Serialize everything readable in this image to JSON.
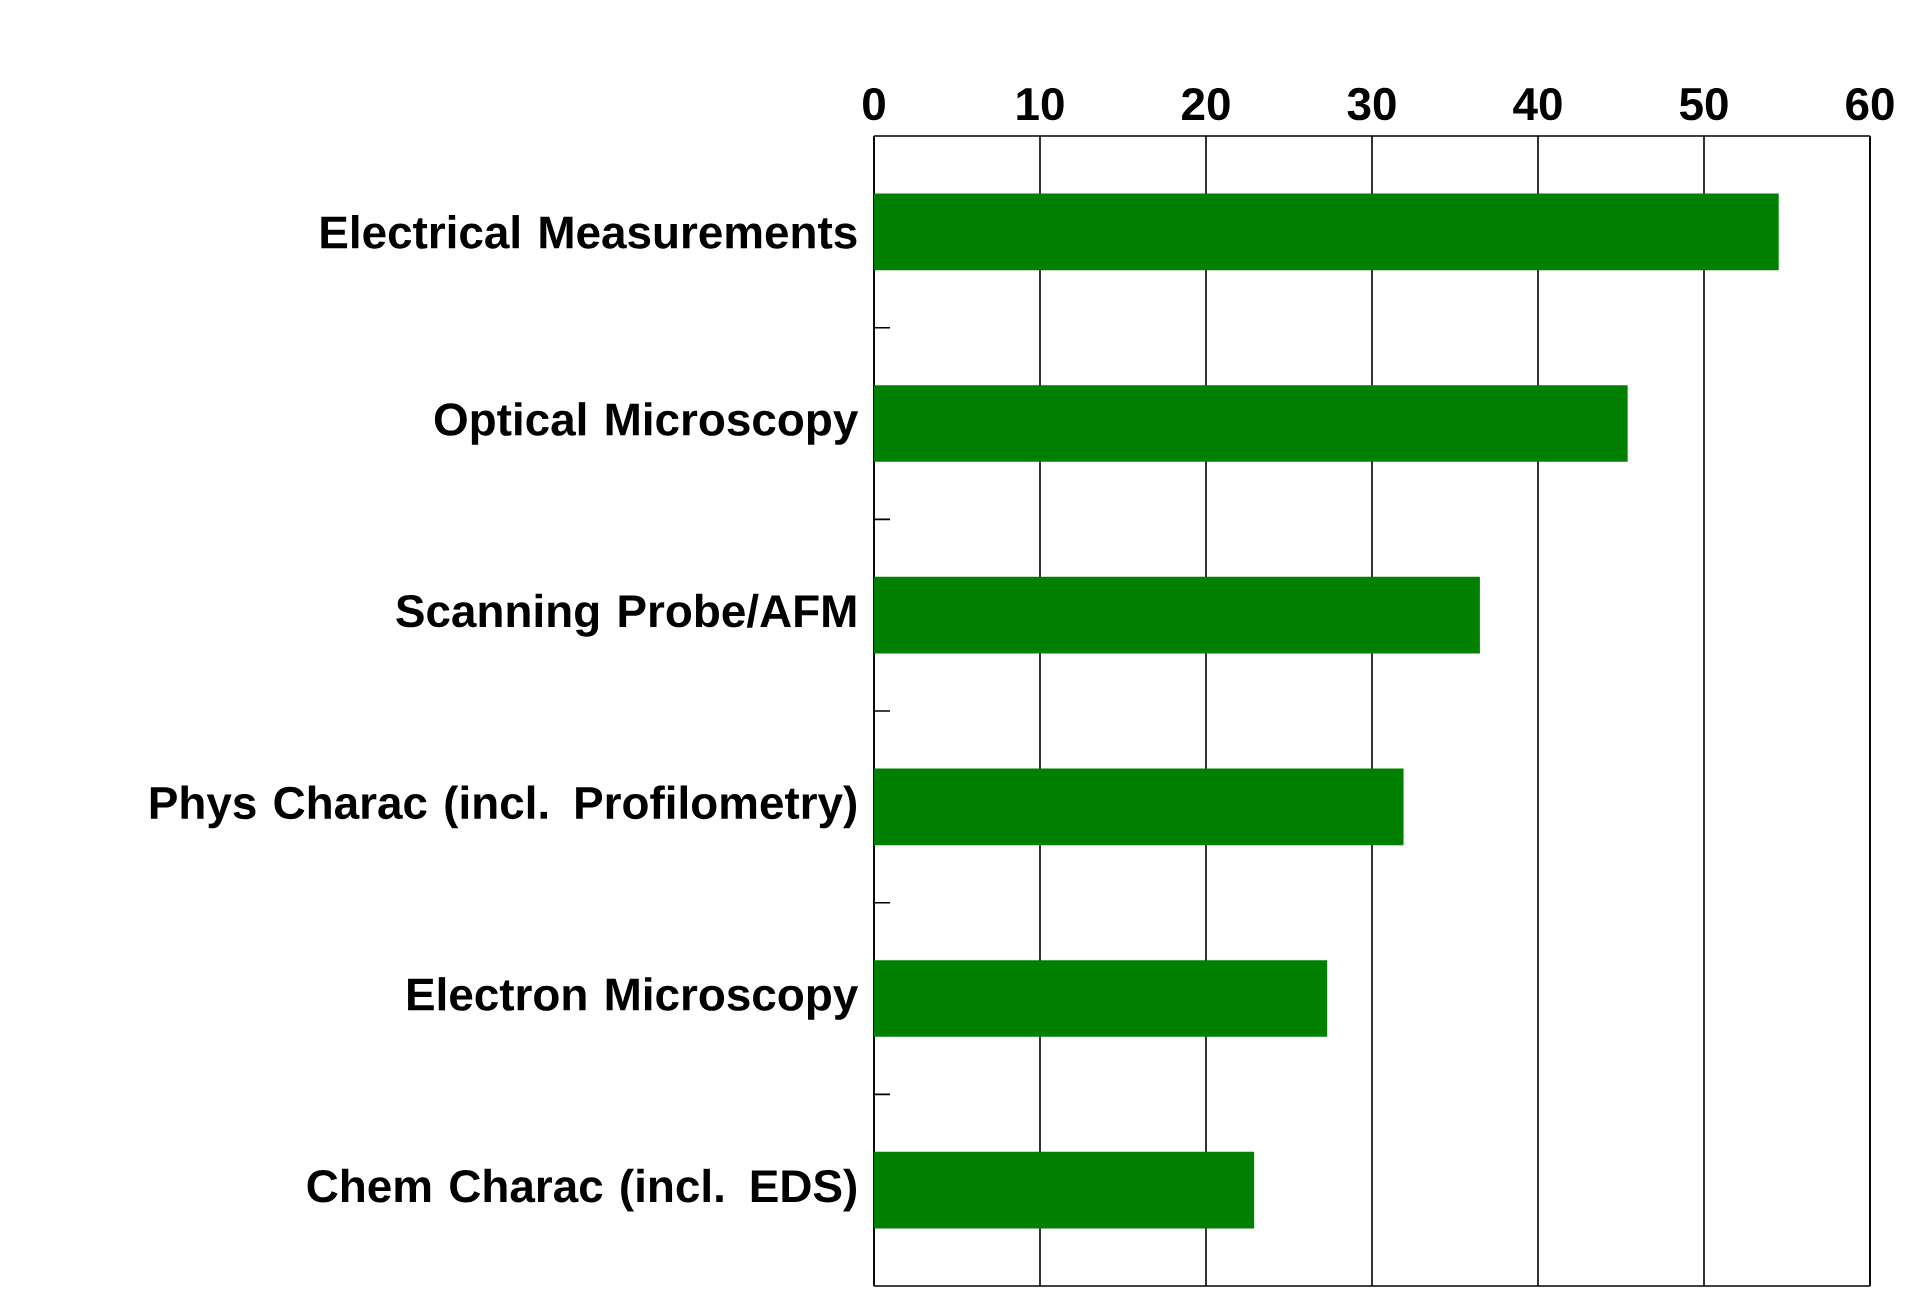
{
  "chart_data": {
    "type": "bar",
    "orientation": "horizontal",
    "categories": [
      "Electrical Measurements",
      "Optical Microscopy",
      "Scanning Probe/AFM",
      "Phys Charac (incl. Profilometry)",
      "Electron Microscopy",
      "Chem Charac (incl. EDS)"
    ],
    "values": [
      54.5,
      45.4,
      36.5,
      31.9,
      27.3,
      22.9
    ],
    "color": "#008000",
    "xlim": [
      0,
      60
    ],
    "xticks": [
      0,
      10,
      20,
      30,
      40,
      50,
      60
    ],
    "grid": "x"
  }
}
